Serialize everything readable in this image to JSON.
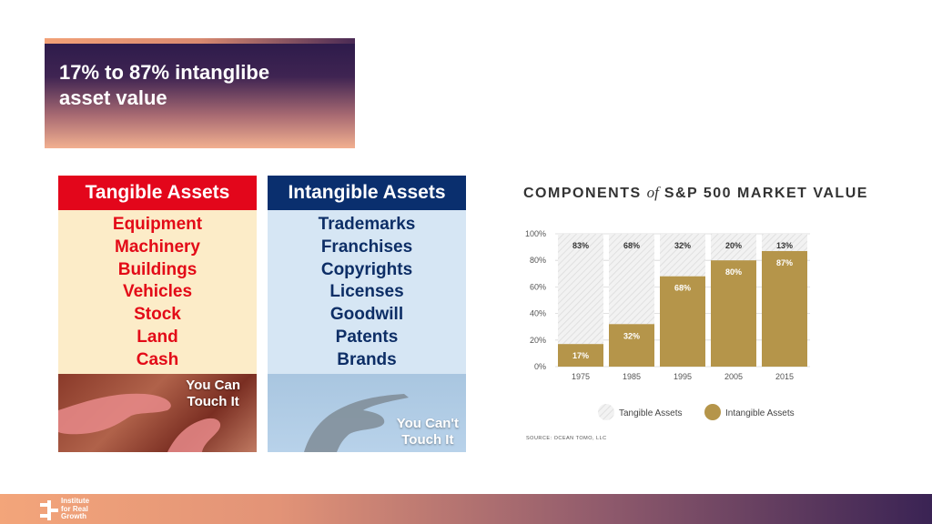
{
  "slide": {
    "title_line1": "17% to 87% intanglibe",
    "title_line2": "asset value"
  },
  "tangible": {
    "header": "Tangible Assets",
    "items": [
      "Equipment",
      "Machinery",
      "Buildings",
      "Vehicles",
      "Stock",
      "Land",
      "Cash"
    ],
    "caption_line1": "You Can",
    "caption_line2": "Touch It"
  },
  "intangible": {
    "header": "Intangible Assets",
    "items": [
      "Trademarks",
      "Franchises",
      "Copyrights",
      "Licenses",
      "Goodwill",
      "Patents",
      "Brands"
    ],
    "caption_line1": "You Can't",
    "caption_line2": "Touch It"
  },
  "chart_title": {
    "part1": "COMPONENTS",
    "of": "of",
    "part2": "S&P 500 MARKET VALUE"
  },
  "chart_data": {
    "type": "bar",
    "stacked": true,
    "categories": [
      "1975",
      "1985",
      "1995",
      "2005",
      "2015"
    ],
    "series": [
      {
        "name": "Intangible Assets",
        "values": [
          17,
          32,
          68,
          80,
          87
        ],
        "color": "#b5954a"
      },
      {
        "name": "Tangible Assets",
        "values": [
          83,
          68,
          32,
          20,
          13
        ],
        "color": "#e9e9e9"
      }
    ],
    "intangible_labels": [
      "17%",
      "32%",
      "68%",
      "80%",
      "87%"
    ],
    "tangible_labels": [
      "83%",
      "68%",
      "32%",
      "20%",
      "13%"
    ],
    "y_ticks": [
      {
        "value": 0,
        "label": "0%"
      },
      {
        "value": 20,
        "label": "20%"
      },
      {
        "value": 40,
        "label": "40%"
      },
      {
        "value": 60,
        "label": "60%"
      },
      {
        "value": 80,
        "label": "80%"
      },
      {
        "value": 100,
        "label": "100%"
      }
    ],
    "ylim": [
      0,
      100
    ],
    "grid": true,
    "legend_position": "bottom",
    "legend": [
      "Tangible Assets",
      "Intangible Assets"
    ]
  },
  "source": "SOURCE: OCEAN TOMO, LLC",
  "footer": {
    "logo_line1": "Institute",
    "logo_line2": "for Real",
    "logo_line3": "Growth"
  }
}
